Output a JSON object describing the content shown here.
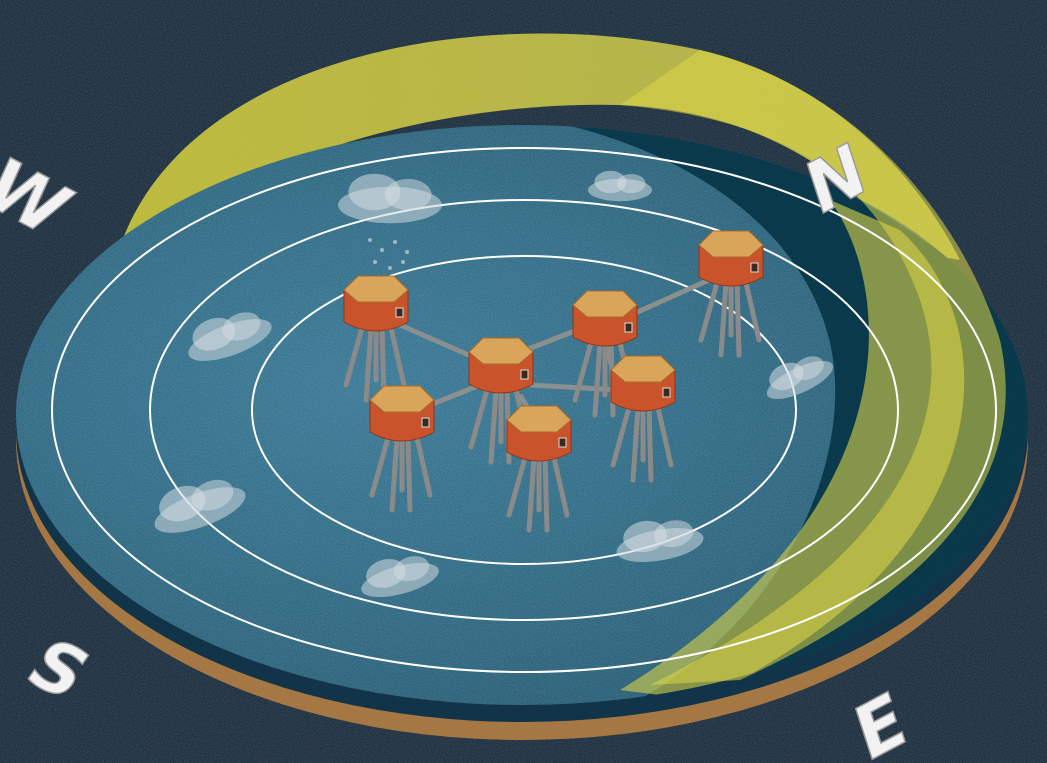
{
  "compass": {
    "north": "N",
    "east": "E",
    "south": "S",
    "west": "W"
  },
  "colors": {
    "background": "#0d1b28",
    "sea": "#1d5a78",
    "sea_shadow": "#063a4c",
    "rim_sand": "#b07a3e",
    "sun_arc": "#d9d34a",
    "rings": "#ffffff",
    "platform_body": "#c9542c",
    "platform_top": "#d9a55a",
    "legs": "#8a8a8a"
  },
  "icons": [
    "cloud-icon",
    "rain-cloud-icon",
    "platform-icon",
    "compass-letter"
  ]
}
